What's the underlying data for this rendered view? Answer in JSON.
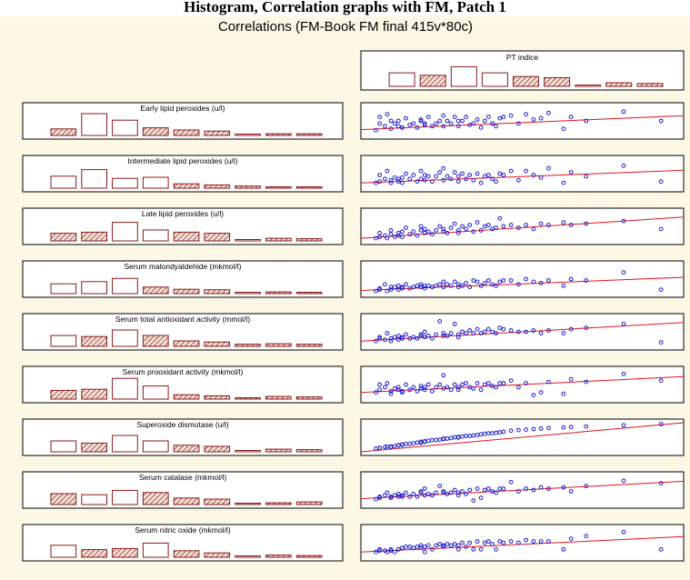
{
  "page_heading": "Histogram, Correlation graphs with FM, Patch 1",
  "chart_data": {
    "type": "scatter-matrix",
    "title": "Correlations (FM-Book FM final 415v*80c)",
    "target": {
      "name": "PT indice",
      "histogram": [
        0.55,
        0.45,
        0.8,
        0.55,
        0.4,
        0.35,
        0.04,
        0.15,
        0.12
      ],
      "hatched": [
        false,
        true,
        false,
        false,
        true,
        true,
        false,
        true,
        true
      ]
    },
    "x_values": [
      2,
      2.5,
      2.5,
      3.2,
      3.5,
      4,
      4,
      4.5,
      5,
      5,
      5.5,
      5.5,
      6,
      6.5,
      7,
      7.5,
      8,
      8,
      8.5,
      8.5,
      9,
      9.5,
      10,
      10.5,
      11,
      11,
      11.5,
      12,
      12.5,
      13,
      13,
      13.5,
      14,
      14.5,
      15,
      15.5,
      16,
      16.5,
      17,
      17.5,
      18,
      18.5,
      19,
      20,
      21,
      22,
      23,
      24,
      25,
      27,
      28,
      30,
      35,
      40
    ],
    "x_range": [
      0,
      43
    ],
    "series": [
      {
        "label": "Early lipid peroxides (u/l)",
        "histogram": [
          0.3,
          1,
          0.7,
          0.35,
          0.25,
          0.2,
          0.04,
          0.08,
          0.08
        ],
        "hatched": [
          true,
          false,
          false,
          true,
          true,
          true,
          false,
          true,
          true
        ],
        "y_values": [
          0.2,
          0.7,
          0.45,
          0.35,
          0.8,
          0.55,
          0.25,
          0.45,
          0.35,
          0.55,
          0.3,
          0.3,
          0.65,
          0.4,
          0.45,
          0.3,
          0.6,
          0.55,
          0.4,
          0.45,
          0.7,
          0.35,
          0.45,
          0.55,
          0.75,
          0.35,
          0.55,
          0.45,
          0.7,
          0.55,
          0.35,
          0.55,
          0.7,
          0.4,
          0.45,
          0.6,
          0.3,
          0.55,
          0.7,
          0.45,
          0.35,
          0.65,
          0.7,
          0.75,
          0.45,
          0.8,
          0.6,
          0.65,
          0.85,
          0.25,
          0.7,
          0.55,
          0.9,
          0.55
        ],
        "fit": [
          0.22,
          0.75
        ]
      },
      {
        "label": "Intermediate lipid peroxides (u/l)",
        "histogram": [
          0.55,
          0.85,
          0.45,
          0.5,
          0.2,
          0.15,
          0.1,
          0.05,
          0.05
        ],
        "hatched": [
          false,
          false,
          false,
          false,
          true,
          true,
          true,
          true,
          true
        ],
        "y_values": [
          0.2,
          0.5,
          0.25,
          0.35,
          0.65,
          0.3,
          0.2,
          0.4,
          0.35,
          0.25,
          0.4,
          0.2,
          0.55,
          0.35,
          0.5,
          0.25,
          0.65,
          0.35,
          0.5,
          0.3,
          0.45,
          0.25,
          0.45,
          0.6,
          0.75,
          0.3,
          0.45,
          0.35,
          0.6,
          0.45,
          0.25,
          0.55,
          0.35,
          0.5,
          0.3,
          0.55,
          0.2,
          0.45,
          0.5,
          0.35,
          0.25,
          0.55,
          0.5,
          0.65,
          0.3,
          0.65,
          0.5,
          0.4,
          0.75,
          0.2,
          0.6,
          0.45,
          0.85,
          0.25
        ],
        "fit": [
          0.2,
          0.68
        ]
      },
      {
        "label": "Late lipid peroxides (u/l)",
        "histogram": [
          0.35,
          0.4,
          0.85,
          0.5,
          0.4,
          0.35,
          0.06,
          0.12,
          0.1
        ],
        "hatched": [
          true,
          true,
          false,
          false,
          true,
          true,
          false,
          true,
          true
        ],
        "y_values": [
          0.1,
          0.15,
          0.3,
          0.2,
          0.1,
          0.4,
          0.25,
          0.15,
          0.3,
          0.2,
          0.35,
          0.15,
          0.5,
          0.25,
          0.35,
          0.2,
          0.4,
          0.55,
          0.3,
          0.45,
          0.35,
          0.25,
          0.4,
          0.55,
          0.35,
          0.45,
          0.3,
          0.5,
          0.65,
          0.4,
          0.3,
          0.55,
          0.45,
          0.6,
          0.35,
          0.7,
          0.4,
          0.55,
          0.6,
          0.45,
          0.5,
          0.85,
          0.55,
          0.6,
          0.5,
          0.6,
          0.45,
          0.65,
          0.6,
          0.7,
          0.6,
          0.65,
          0.75,
          0.45
        ],
        "fit": [
          0.1,
          0.9
        ]
      },
      {
        "label": "Serum malondyaldehide (mkmol/l)",
        "histogram": [
          0.45,
          0.55,
          0.7,
          0.3,
          0.2,
          0.18,
          0.04,
          0.08,
          0.06
        ],
        "hatched": [
          false,
          false,
          false,
          true,
          true,
          true,
          false,
          true,
          true
        ],
        "y_values": [
          0.1,
          0.15,
          0.2,
          0.35,
          0.1,
          0.25,
          0.15,
          0.25,
          0.3,
          0.15,
          0.25,
          0.2,
          0.35,
          0.2,
          0.25,
          0.3,
          0.25,
          0.35,
          0.2,
          0.3,
          0.3,
          0.25,
          0.3,
          0.35,
          0.45,
          0.25,
          0.35,
          0.3,
          0.45,
          0.25,
          0.35,
          0.3,
          0.4,
          0.25,
          0.5,
          0.45,
          0.3,
          0.4,
          0.5,
          0.35,
          0.3,
          0.45,
          0.5,
          0.5,
          0.35,
          0.55,
          0.45,
          0.4,
          0.5,
          0.3,
          0.55,
          0.5,
          0.8,
          0.15
        ],
        "fit": [
          0.12,
          0.62
        ]
      },
      {
        "label": "Serum total antioxidant activity (mmol/l)",
        "histogram": [
          0.5,
          0.45,
          0.75,
          0.5,
          0.25,
          0.2,
          0.1,
          0.12,
          0.1
        ],
        "hatched": [
          false,
          true,
          false,
          true,
          true,
          true,
          true,
          true,
          true
        ],
        "y_values": [
          0.2,
          0.3,
          0.35,
          0.25,
          0.5,
          0.3,
          0.2,
          0.35,
          0.25,
          0.4,
          0.3,
          0.35,
          0.45,
          0.3,
          0.35,
          0.3,
          0.45,
          0.4,
          0.35,
          0.55,
          0.4,
          0.3,
          0.45,
          0.95,
          0.4,
          0.5,
          0.4,
          0.5,
          0.85,
          0.45,
          0.35,
          0.55,
          0.5,
          0.6,
          0.5,
          0.65,
          0.5,
          0.55,
          0.65,
          0.55,
          0.5,
          0.7,
          0.65,
          0.6,
          0.55,
          0.55,
          0.6,
          0.5,
          0.6,
          0.5,
          0.65,
          0.7,
          0.85,
          0.15
        ],
        "fit": [
          0.2,
          0.9
        ]
      },
      {
        "label": "Serum prooxidant activity (mkmol/l)",
        "histogram": [
          0.4,
          0.45,
          0.95,
          0.6,
          0.2,
          0.15,
          0.05,
          0.12,
          0.1
        ],
        "hatched": [
          true,
          true,
          false,
          false,
          true,
          true,
          true,
          true,
          true
        ],
        "y_values": [
          0.25,
          0.55,
          0.35,
          0.45,
          0.6,
          0.3,
          0.2,
          0.4,
          0.35,
          0.45,
          0.3,
          0.25,
          0.55,
          0.35,
          0.45,
          0.3,
          0.5,
          0.4,
          0.35,
          0.45,
          0.55,
          0.3,
          0.45,
          0.55,
          0.9,
          0.4,
          0.45,
          0.35,
          0.55,
          0.45,
          0.35,
          0.55,
          0.6,
          0.45,
          0.4,
          0.6,
          0.35,
          0.55,
          0.6,
          0.5,
          0.45,
          0.6,
          0.6,
          0.7,
          0.45,
          0.6,
          0.15,
          0.25,
          0.65,
          0.2,
          0.75,
          0.65,
          0.95,
          0.7
        ],
        "fit": [
          0.25,
          0.85
        ]
      },
      {
        "label": "Superoxide dismutase (u/l)",
        "histogram": [
          0.5,
          0.4,
          0.75,
          0.5,
          0.3,
          0.25,
          0.03,
          0.12,
          0.1
        ],
        "hatched": [
          false,
          true,
          false,
          false,
          true,
          true,
          false,
          true,
          true
        ],
        "y_values": [
          0.12,
          0.15,
          0.14,
          0.18,
          0.2,
          0.18,
          0.2,
          0.22,
          0.25,
          0.24,
          0.26,
          0.28,
          0.3,
          0.3,
          0.32,
          0.35,
          0.34,
          0.38,
          0.4,
          0.38,
          0.42,
          0.44,
          0.45,
          0.46,
          0.48,
          0.5,
          0.5,
          0.52,
          0.55,
          0.54,
          0.56,
          0.58,
          0.6,
          0.6,
          0.62,
          0.64,
          0.66,
          0.68,
          0.7,
          0.7,
          0.72,
          0.74,
          0.76,
          0.8,
          0.82,
          0.84,
          0.86,
          0.88,
          0.9,
          0.92,
          0.94,
          0.96,
          1.0,
          1.05
        ],
        "fit": [
          0.0,
          1.1
        ]
      },
      {
        "label": "Serum catalase (mkmol/l)",
        "histogram": [
          0.5,
          0.45,
          0.65,
          0.55,
          0.3,
          0.25,
          0.05,
          0.08,
          0.12
        ],
        "hatched": [
          true,
          false,
          false,
          true,
          true,
          true,
          true,
          true,
          true
        ],
        "y_values": [
          0.2,
          0.3,
          0.25,
          0.35,
          0.45,
          0.3,
          0.25,
          0.35,
          0.3,
          0.4,
          0.3,
          0.35,
          0.45,
          0.3,
          0.4,
          0.3,
          0.5,
          0.45,
          0.35,
          0.6,
          0.4,
          0.35,
          0.45,
          0.7,
          0.45,
          0.5,
          0.4,
          0.45,
          0.55,
          0.45,
          0.35,
          0.5,
          0.4,
          0.55,
          0.15,
          0.6,
          0.25,
          0.55,
          0.6,
          0.5,
          0.45,
          0.6,
          0.6,
          0.85,
          0.5,
          0.6,
          0.55,
          0.65,
          0.6,
          0.65,
          0.5,
          0.7,
          0.9,
          0.8
        ],
        "fit": [
          0.22,
          0.88
        ]
      },
      {
        "label": "Serum nitric oxide (mkmol/l)",
        "histogram": [
          0.55,
          0.35,
          0.4,
          0.65,
          0.3,
          0.2,
          0.04,
          0.1,
          0.08
        ],
        "hatched": [
          false,
          true,
          true,
          false,
          true,
          true,
          false,
          true,
          true
        ],
        "y_values": [
          0.2,
          0.25,
          0.3,
          0.25,
          0.2,
          0.3,
          0.25,
          0.2,
          0.3,
          0.3,
          0.35,
          0.35,
          0.4,
          0.4,
          0.35,
          0.4,
          0.45,
          0.35,
          0.4,
          0.2,
          0.45,
          0.3,
          0.45,
          0.5,
          0.4,
          0.45,
          0.5,
          0.45,
          0.5,
          0.45,
          0.3,
          0.55,
          0.4,
          0.55,
          0.3,
          0.6,
          0.3,
          0.55,
          0.6,
          0.5,
          0.3,
          0.6,
          0.55,
          0.6,
          0.55,
          0.65,
          0.6,
          0.6,
          0.6,
          0.3,
          0.7,
          0.8,
          0.95,
          0.3
        ],
        "fit": [
          0.2,
          0.78
        ]
      }
    ],
    "colors": {
      "background": "#fdf7e6",
      "bar": "#8b1a1a",
      "points": "#1c1cd0",
      "fit_line": "#e3141d",
      "frame": "#000000"
    }
  }
}
